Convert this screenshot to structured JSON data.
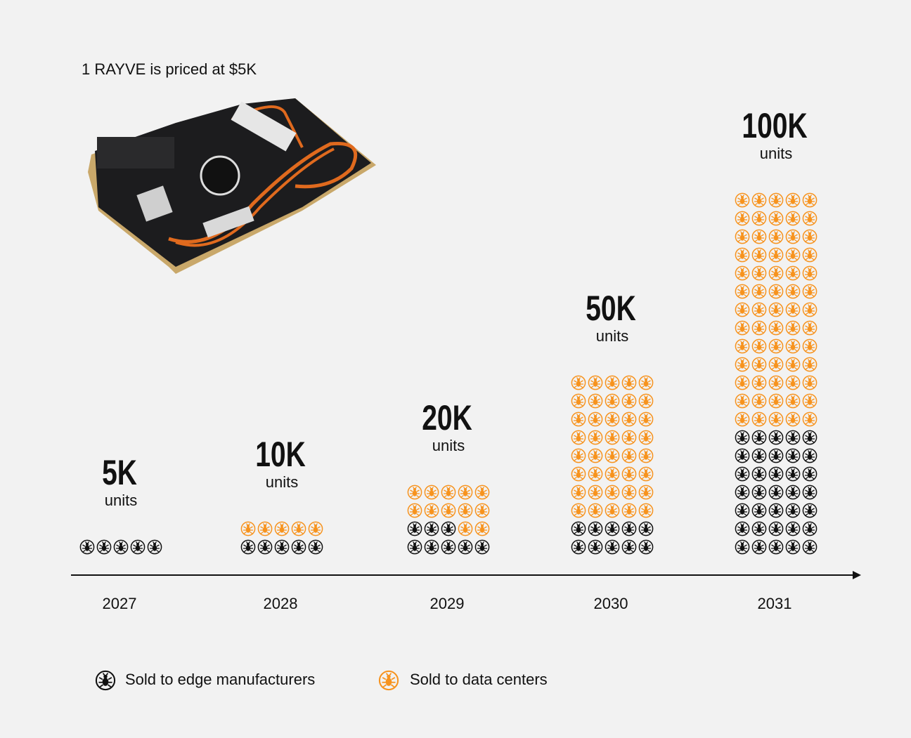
{
  "chart_data": {
    "type": "pictogram",
    "title": "1 RAYVE is priced at $5K",
    "categories": [
      "2027",
      "2028",
      "2029",
      "2030",
      "2031"
    ],
    "total_labels": [
      "5K",
      "10K",
      "20K",
      "50K",
      "100K"
    ],
    "unit_label": "units",
    "series": [
      {
        "name": "Sold to edge manufacturers",
        "color": "#111111",
        "values": [
          5,
          5,
          8,
          10,
          35
        ]
      },
      {
        "name": "Sold to data centers",
        "color": "#f7931e",
        "values": [
          0,
          5,
          12,
          40,
          65
        ]
      }
    ]
  }
}
